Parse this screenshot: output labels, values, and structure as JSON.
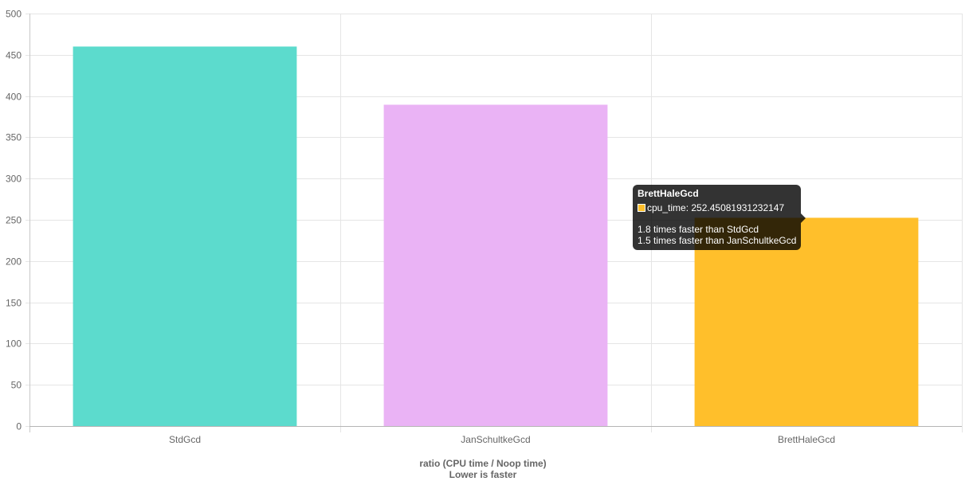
{
  "chart_data": {
    "type": "bar",
    "categories": [
      "StdGcd",
      "JanSchultkeGcd",
      "BrettHaleGcd"
    ],
    "series": [
      {
        "values": [
          460,
          389.5,
          252.45081931232147
        ]
      }
    ],
    "colors": [
      "#5cdbcd",
      "#eab3f5",
      "#ffbf2b"
    ],
    "xlabel": "ratio (CPU time / Noop time)",
    "xlabel_sub": "Lower is faster",
    "ylim": [
      0,
      500
    ],
    "yticks": [
      0,
      50,
      100,
      150,
      200,
      250,
      300,
      350,
      400,
      450,
      500
    ],
    "grid": true,
    "legend": "none"
  },
  "tooltip": {
    "title": "BrettHaleGcd",
    "value_line": "cpu_time: 252.45081931232147",
    "lines": [
      "1.8 times faster than StdGcd",
      "1.5 times faster than JanSchultkeGcd"
    ],
    "swatch_color": "#ffbf2b"
  }
}
